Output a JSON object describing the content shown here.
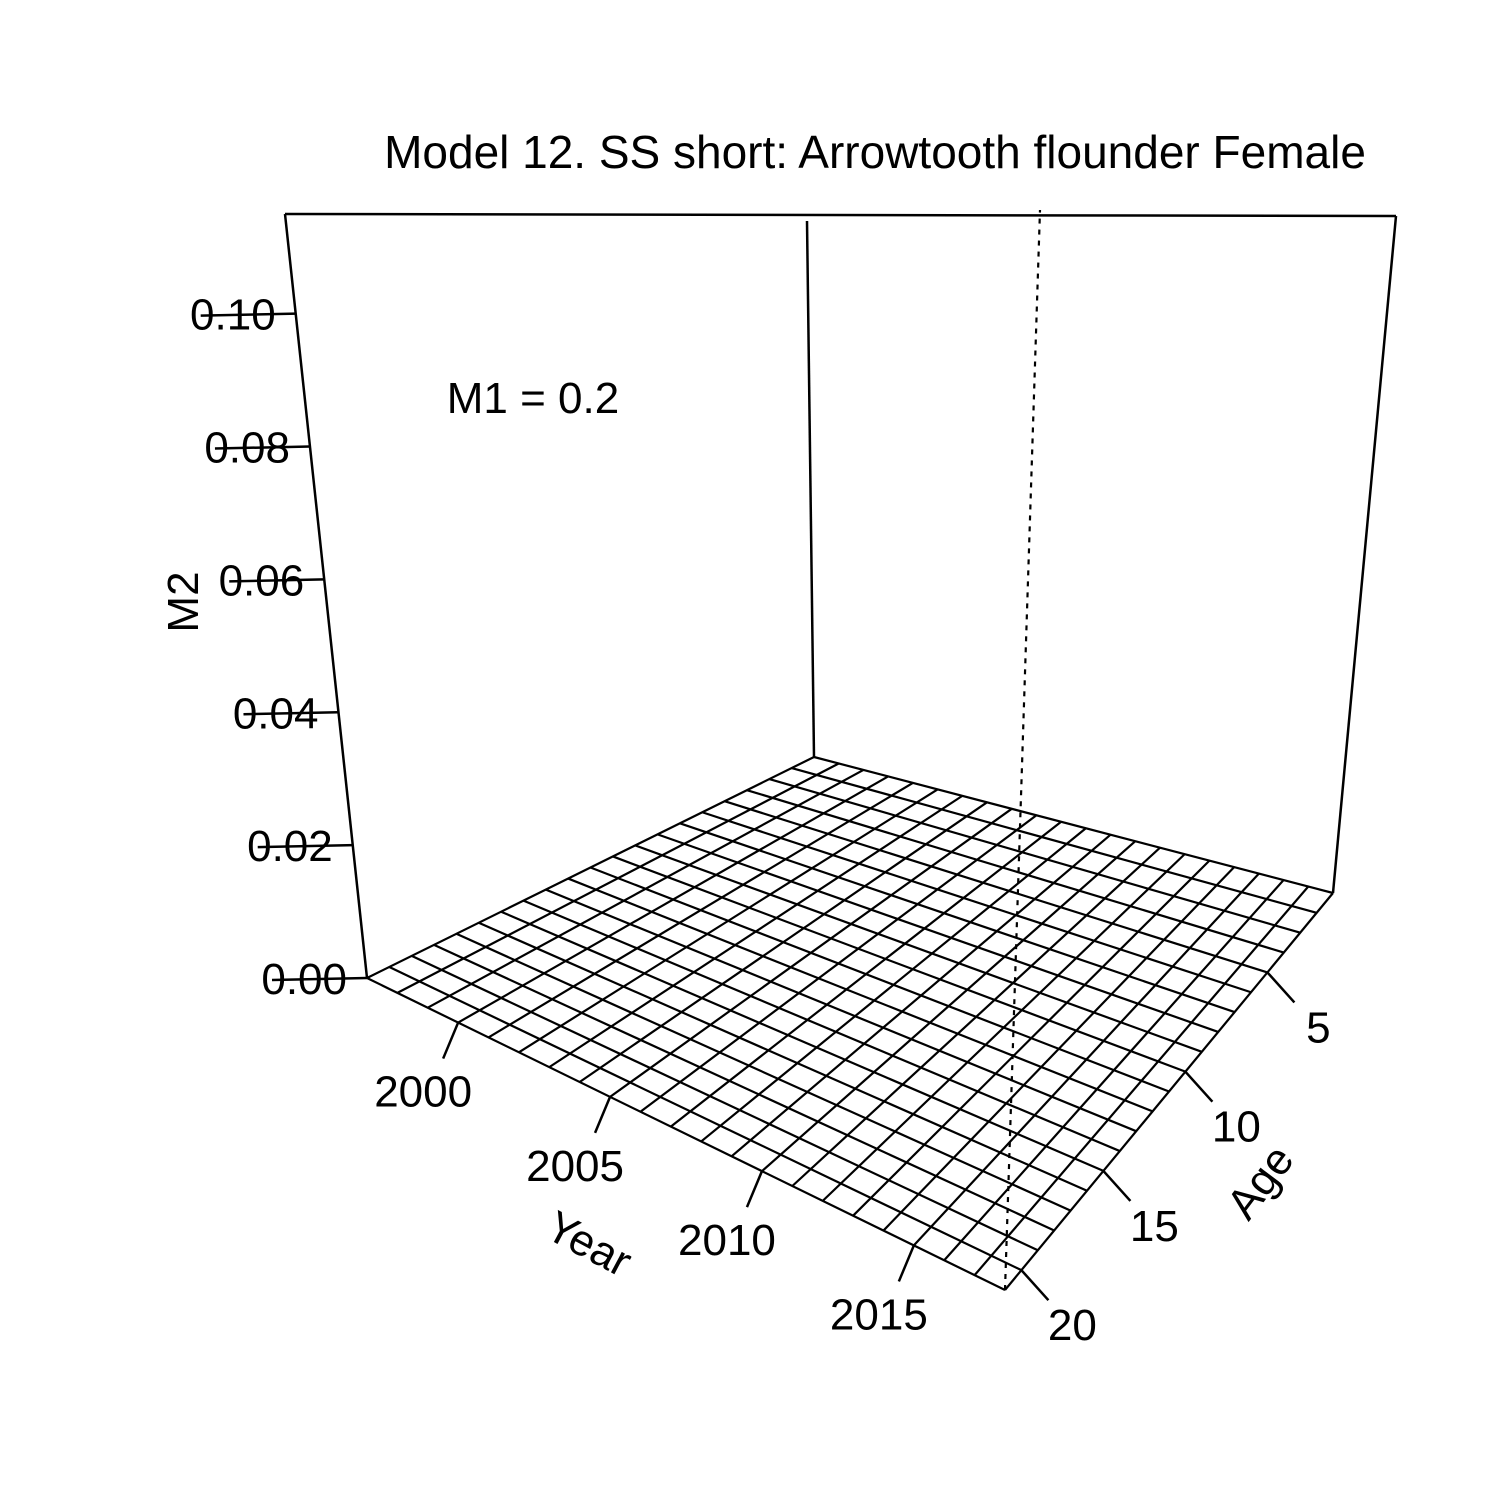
{
  "chart_data": {
    "type": "surface",
    "title": "Model 12. SS short: Arrowtooth flounder Female",
    "annotation": "M1 = 0.2",
    "xlabel": "Year",
    "ylabel": "Age",
    "zlabel": "M2",
    "x_ticks": [
      "2000",
      "2005",
      "2010",
      "2015"
    ],
    "y_ticks": [
      "5",
      "10",
      "15",
      "20"
    ],
    "z_ticks": [
      "0.00",
      "0.02",
      "0.04",
      "0.06",
      "0.08",
      "0.10"
    ],
    "x_range": [
      1997,
      2018
    ],
    "y_range": [
      1,
      21
    ],
    "z_range": [
      0,
      0.115
    ],
    "surface_z": 0,
    "x_grid_lines": 22,
    "y_grid_lines": 21,
    "grid": false,
    "line_color": "#000000"
  }
}
